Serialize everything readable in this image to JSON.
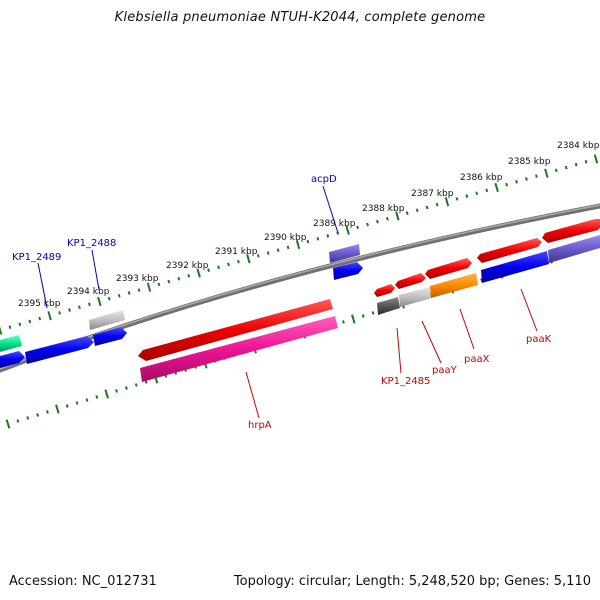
{
  "title": "Klebsiella pneumoniae NTUH-K2044, complete genome",
  "footer": {
    "accession": "Accession: NC_012731",
    "summary": "Topology: circular; Length: 5,248,520 bp; Genes: 5,110"
  },
  "scale_ticks": [
    "2384 kbp",
    "2385 kbp",
    "2386 kbp",
    "2387 kbp",
    "2388 kbp",
    "2389 kbp",
    "2390 kbp",
    "2391 kbp",
    "2392 kbp",
    "2393 kbp",
    "2394 kbp",
    "2395 kbp"
  ],
  "gene_labels": {
    "acpD": "acpD",
    "KP1_2488": "KP1_2488",
    "KP1_2489": "KP1_2489",
    "hrpA": "hrpA",
    "KP1_2485": "KP1_2485",
    "paaY": "paaY",
    "paaX": "paaX",
    "paaK": "paaK"
  },
  "colors": {
    "forward_label": "#0000cc",
    "reverse_label": "#cc0000",
    "backbone": "#808080",
    "tick": "#1a7a1a"
  }
}
